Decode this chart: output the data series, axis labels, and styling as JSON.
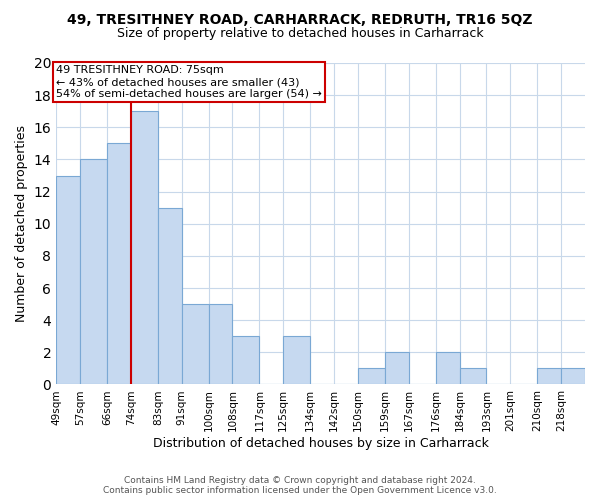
{
  "title1": "49, TRESITHNEY ROAD, CARHARRACK, REDRUTH, TR16 5QZ",
  "title2": "Size of property relative to detached houses in Carharrack",
  "xlabel": "Distribution of detached houses by size in Carharrack",
  "ylabel": "Number of detached properties",
  "bin_labels": [
    "49sqm",
    "57sqm",
    "66sqm",
    "74sqm",
    "83sqm",
    "91sqm",
    "100sqm",
    "108sqm",
    "117sqm",
    "125sqm",
    "134sqm",
    "142sqm",
    "150sqm",
    "159sqm",
    "167sqm",
    "176sqm",
    "184sqm",
    "193sqm",
    "201sqm",
    "210sqm",
    "218sqm"
  ],
  "bin_edges": [
    49,
    57,
    66,
    74,
    83,
    91,
    100,
    108,
    117,
    125,
    134,
    142,
    150,
    159,
    167,
    176,
    184,
    193,
    201,
    210,
    218
  ],
  "counts": [
    13,
    14,
    15,
    17,
    11,
    5,
    5,
    3,
    0,
    3,
    0,
    0,
    1,
    2,
    0,
    2,
    1,
    0,
    0,
    1,
    1
  ],
  "bar_color": "#c6d9f0",
  "bar_edge_color": "#7aa8d4",
  "vline_x": 74,
  "vline_color": "#cc0000",
  "annotation_line1": "49 TRESITHNEY ROAD: 75sqm",
  "annotation_line2": "← 43% of detached houses are smaller (43)",
  "annotation_line3": "54% of semi-detached houses are larger (54) →",
  "annotation_box_color": "white",
  "annotation_box_edge": "#cc0000",
  "ylim": [
    0,
    20
  ],
  "yticks": [
    0,
    2,
    4,
    6,
    8,
    10,
    12,
    14,
    16,
    18,
    20
  ],
  "grid_color": "#c8d8ea",
  "footer1": "Contains HM Land Registry data © Crown copyright and database right 2024.",
  "footer2": "Contains public sector information licensed under the Open Government Licence v3.0."
}
